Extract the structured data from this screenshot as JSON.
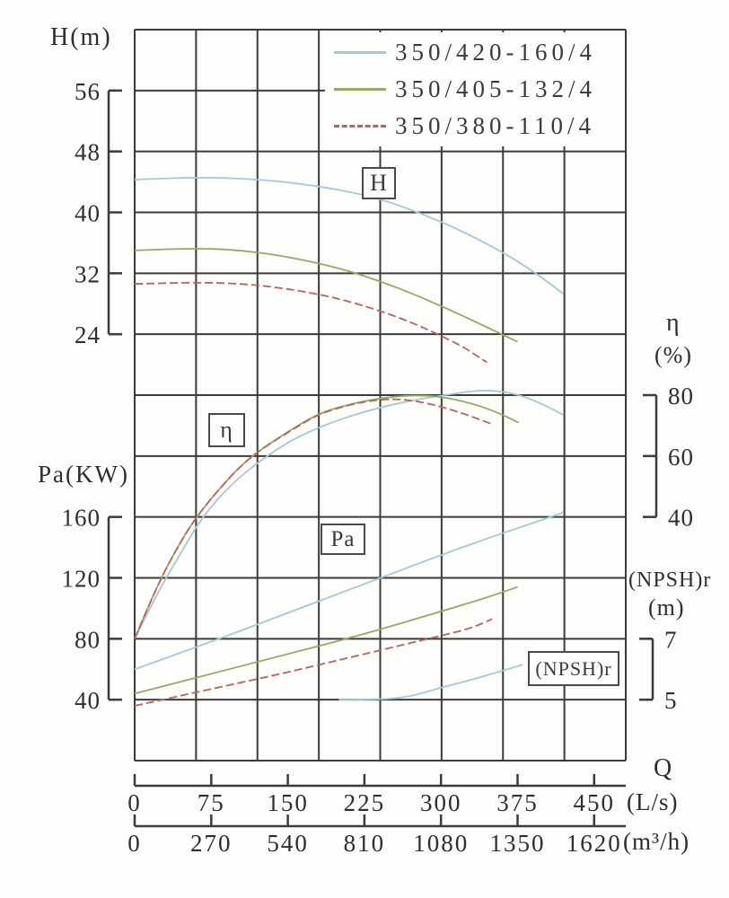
{
  "labels": {
    "h_axis": "H(m)",
    "pa_axis": "Pa(KW)",
    "eta_axis": "η",
    "eta_unit": "(%)",
    "npsh_axis": "(NPSH)r",
    "npsh_unit": "(m)",
    "q_axis": "Q",
    "q_ls_unit": "(L/s)",
    "q_m3h_unit": "(m³/h)"
  },
  "curve_labels": {
    "h": "H",
    "eta": "η",
    "pa": "Pa",
    "npsh": "(NPSH)r"
  },
  "legend": {
    "items": [
      {
        "label": "350/420-160/4",
        "color": "#a3c9da",
        "dash": ""
      },
      {
        "label": "350/405-132/4",
        "color": "#92ac63",
        "dash": ""
      },
      {
        "label": "350/380-110/4",
        "color": "#c0605d",
        "dash": "9 4"
      }
    ]
  },
  "axes": {
    "h": {
      "label": "H(m)",
      "ticks": [
        56,
        48,
        40,
        32,
        24
      ]
    },
    "pa": {
      "label": "Pa(KW)",
      "ticks": [
        160,
        120,
        80,
        40
      ]
    },
    "eta": {
      "label": "η (%)",
      "ticks": [
        80,
        60,
        40
      ]
    },
    "npsh": {
      "label": "(NPSH)r (m)",
      "ticks": [
        7,
        5
      ]
    },
    "q_ls": {
      "label": "Q (L/s)",
      "ticks": [
        0,
        75,
        150,
        225,
        300,
        375,
        450
      ]
    },
    "q_m3h": {
      "label": "Q (m³/h)",
      "ticks": [
        0,
        270,
        540,
        810,
        1080,
        1350,
        1620
      ]
    }
  },
  "chart_data": {
    "type": "line",
    "title": "Pump performance curves",
    "xlabel": "Q (L/s) / Q (m³/h)",
    "x_range_ls": [
      0,
      481
    ],
    "grid": "on",
    "legend_position": "top-right",
    "quantities": [
      "H (m)",
      "η (%)",
      "Pa (KW)",
      "(NPSH)r (m)"
    ],
    "series": [
      {
        "name": "350/420-160/4",
        "quantity": "H",
        "axis": "H",
        "color": "#a3c9da",
        "dash": "",
        "points": [
          [
            0,
            44.3
          ],
          [
            50,
            44.6
          ],
          [
            100,
            44.5
          ],
          [
            150,
            44.0
          ],
          [
            200,
            43.0
          ],
          [
            240,
            41.8
          ],
          [
            280,
            39.9
          ],
          [
            320,
            37.6
          ],
          [
            360,
            34.8
          ],
          [
            390,
            32.3
          ],
          [
            420,
            29.3
          ]
        ]
      },
      {
        "name": "350/405-132/4",
        "quantity": "H",
        "axis": "H",
        "color": "#92ac63",
        "dash": "",
        "points": [
          [
            0,
            35.0
          ],
          [
            50,
            35.3
          ],
          [
            100,
            35.1
          ],
          [
            150,
            34.2
          ],
          [
            200,
            32.7
          ],
          [
            240,
            31.0
          ],
          [
            280,
            28.9
          ],
          [
            320,
            26.5
          ],
          [
            350,
            24.6
          ],
          [
            375,
            23.0
          ]
        ]
      },
      {
        "name": "350/380-110/4",
        "quantity": "H",
        "axis": "H",
        "color": "#c0605d",
        "dash": "9 4",
        "points": [
          [
            0,
            30.6
          ],
          [
            50,
            30.8
          ],
          [
            100,
            30.7
          ],
          [
            150,
            30.0
          ],
          [
            200,
            28.7
          ],
          [
            240,
            27.1
          ],
          [
            270,
            25.6
          ],
          [
            292,
            24.3
          ],
          [
            320,
            22.5
          ],
          [
            345,
            20.3
          ]
        ]
      },
      {
        "name": "350/420-160/4",
        "quantity": "eta",
        "axis": "eta",
        "color": "#a3c9da",
        "dash": "",
        "points": [
          [
            0,
            0
          ],
          [
            22,
            15
          ],
          [
            45,
            28
          ],
          [
            66,
            40
          ],
          [
            95,
            51
          ],
          [
            129,
            60
          ],
          [
            160,
            66.5
          ],
          [
            200,
            72
          ],
          [
            240,
            76
          ],
          [
            280,
            78.8
          ],
          [
            310,
            80.3
          ],
          [
            340,
            81.8
          ],
          [
            370,
            80.8
          ],
          [
            395,
            77.8
          ],
          [
            420,
            73.5
          ]
        ]
      },
      {
        "name": "350/405-132/4",
        "quantity": "eta",
        "axis": "eta",
        "color": "#92ac63",
        "dash": "",
        "points": [
          [
            0,
            0
          ],
          [
            20,
            16
          ],
          [
            40,
            29
          ],
          [
            60,
            40
          ],
          [
            90,
            52
          ],
          [
            114,
            60
          ],
          [
            150,
            68
          ],
          [
            180,
            74
          ],
          [
            210,
            77
          ],
          [
            240,
            79
          ],
          [
            270,
            80
          ],
          [
            300,
            79.6
          ],
          [
            330,
            77.3
          ],
          [
            355,
            74.4
          ],
          [
            376,
            71
          ]
        ]
      },
      {
        "name": "350/380-110/4",
        "quantity": "eta",
        "axis": "eta",
        "color": "#c0605d",
        "dash": "9 4",
        "points": [
          [
            0,
            0
          ],
          [
            20,
            16
          ],
          [
            40,
            29
          ],
          [
            60,
            40
          ],
          [
            90,
            52
          ],
          [
            114,
            60
          ],
          [
            150,
            67.8
          ],
          [
            180,
            73.8
          ],
          [
            210,
            76.8
          ],
          [
            235,
            78.4
          ],
          [
            260,
            78.8
          ],
          [
            290,
            77.2
          ],
          [
            320,
            74.2
          ],
          [
            350,
            70.5
          ]
        ]
      },
      {
        "name": "350/420-160/4",
        "quantity": "Pa",
        "axis": "Pa",
        "color": "#a3c9da",
        "dash": "",
        "points": [
          [
            0,
            60
          ],
          [
            75,
            78
          ],
          [
            150,
            97
          ],
          [
            225,
            116
          ],
          [
            300,
            135
          ],
          [
            350,
            147
          ],
          [
            390,
            156
          ],
          [
            420,
            163
          ]
        ]
      },
      {
        "name": "350/405-132/4",
        "quantity": "Pa",
        "axis": "Pa",
        "color": "#92ac63",
        "dash": "",
        "points": [
          [
            0,
            44
          ],
          [
            75,
            57
          ],
          [
            150,
            70
          ],
          [
            225,
            83
          ],
          [
            300,
            98
          ],
          [
            340,
            106
          ],
          [
            375,
            114
          ]
        ]
      },
      {
        "name": "350/380-110/4",
        "quantity": "Pa",
        "axis": "Pa",
        "color": "#c0605d",
        "dash": "9 4",
        "points": [
          [
            0,
            36
          ],
          [
            75,
            47
          ],
          [
            150,
            58
          ],
          [
            225,
            70
          ],
          [
            300,
            82
          ],
          [
            330,
            87
          ],
          [
            350,
            93
          ]
        ]
      },
      {
        "name": "350/420-160/4",
        "quantity": "NPSH",
        "axis": "NPSH",
        "color": "#a3c9da",
        "dash": "",
        "points": [
          [
            200,
            5.0
          ],
          [
            240,
            5.0
          ],
          [
            270,
            5.1
          ],
          [
            300,
            5.4
          ],
          [
            330,
            5.65
          ],
          [
            360,
            5.95
          ],
          [
            380,
            6.15
          ]
        ]
      }
    ]
  }
}
